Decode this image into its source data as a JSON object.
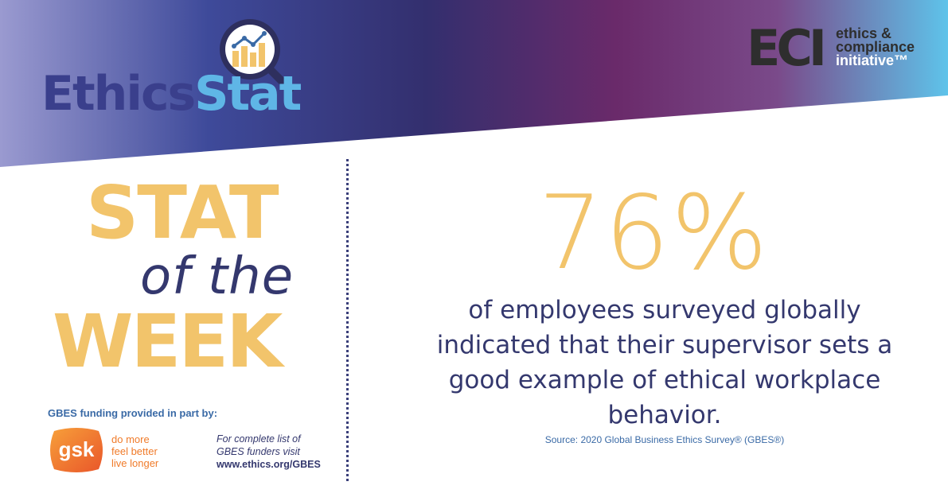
{
  "header": {
    "logo_part1": "Ethics",
    "logo_part2": "Stat",
    "partner_acronym": "ECI",
    "partner_line1": "ethics &",
    "partner_line2": "compliance",
    "partner_line3": "initiative™"
  },
  "headline": {
    "line1": "STAT",
    "line2": "of the",
    "line3": "WEEK"
  },
  "sponsor": {
    "funding_label": "GBES funding provided in part by:",
    "logo_text": "gsk",
    "tagline1": "do more",
    "tagline2": "feel better",
    "tagline3": "live longer",
    "funders_line1": "For complete list of",
    "funders_line2": "GBES funders visit",
    "funders_url": "www.ethics.org/GBES"
  },
  "stat": {
    "value": "76%",
    "description": "of employees surveyed globally indicated that their supervisor sets a good example of ethical workplace behavior.",
    "source": "Source: 2020 Global Business Ethics Survey® (GBES®)"
  },
  "colors": {
    "accent_yellow": "#f2c46b",
    "navy": "#34386e",
    "light_blue": "#5fb6e6",
    "gsk_orange": "#f07b2a"
  },
  "icons": {
    "magnifier": "magnifier-chart-icon",
    "gsk": "gsk-logo-icon"
  }
}
